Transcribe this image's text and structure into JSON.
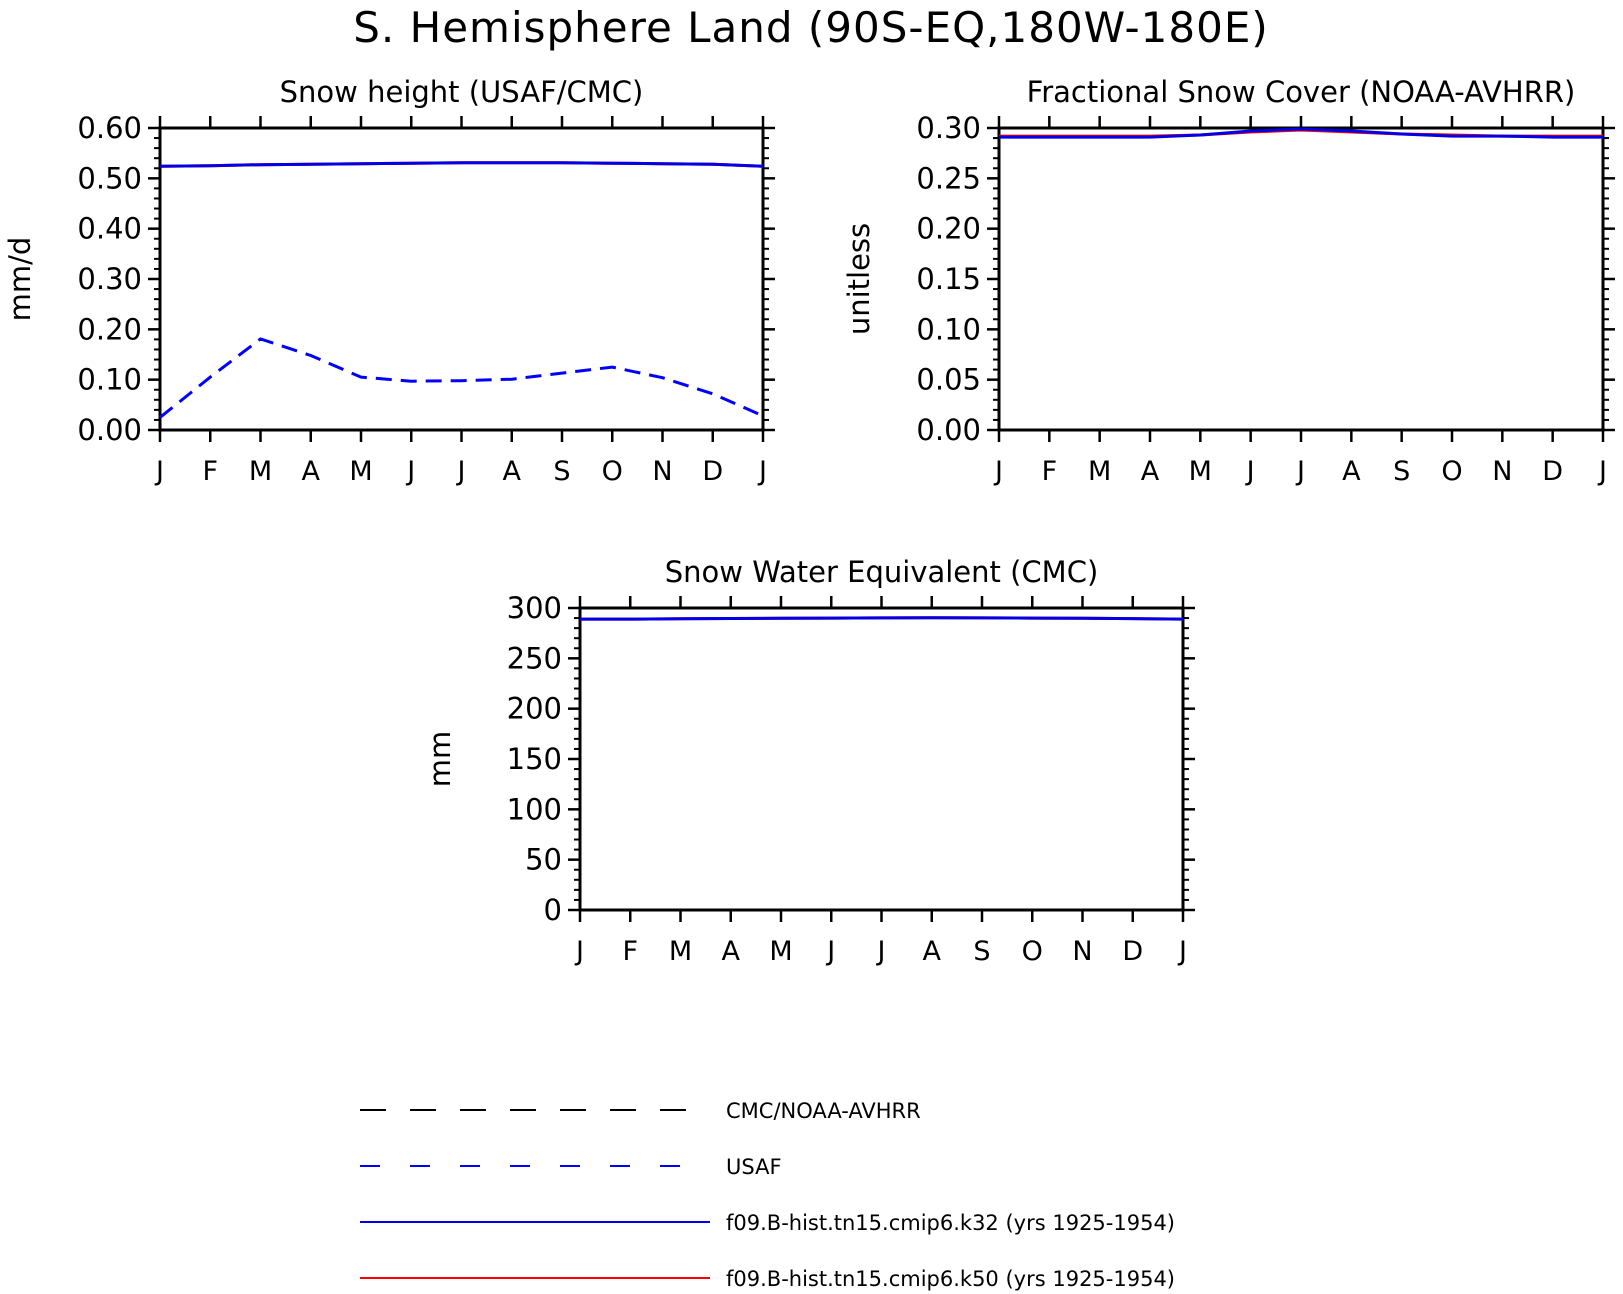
{
  "figure": {
    "title": "S. Hemisphere Land (90S-EQ,180W-180E)"
  },
  "colors": {
    "obs_black": "#000000",
    "usaf_blue": "#0000ff",
    "k32_blue": "#0000e6",
    "k50_red": "#ff0000"
  },
  "months": [
    "J",
    "F",
    "M",
    "A",
    "M",
    "J",
    "J",
    "A",
    "S",
    "O",
    "N",
    "D",
    "J"
  ],
  "legend": [
    {
      "label": "CMC/NOAA-AVHRR",
      "color": "#000000",
      "style": "dashed-long"
    },
    {
      "label": "USAF",
      "color": "#0000ff",
      "style": "dashed"
    },
    {
      "label": "f09.B-hist.tn15.cmip6.k32 (yrs 1925-1954)",
      "color": "#0000e6",
      "style": "solid"
    },
    {
      "label": "f09.B-hist.tn15.cmip6.k50 (yrs 1925-1954)",
      "color": "#ff0000",
      "style": "solid"
    }
  ],
  "chart_data": [
    {
      "type": "line",
      "title": "Snow height (USAF/CMC)",
      "xlabel": "",
      "ylabel": "mm/d",
      "x": [
        "J",
        "F",
        "M",
        "A",
        "M",
        "J",
        "J",
        "A",
        "S",
        "O",
        "N",
        "D",
        "J"
      ],
      "yticks": [
        "0.00",
        "0.10",
        "0.20",
        "0.30",
        "0.40",
        "0.50",
        "0.60"
      ],
      "ylim": [
        0,
        0.6
      ],
      "series": [
        {
          "name": "f09.B-hist.tn15.cmip6.k50 (yrs 1925-1954)",
          "color": "#ff0000",
          "style": "solid",
          "values": [
            0.524,
            0.525,
            0.527,
            0.528,
            0.529,
            0.53,
            0.531,
            0.531,
            0.531,
            0.53,
            0.529,
            0.528,
            0.524
          ]
        },
        {
          "name": "f09.B-hist.tn15.cmip6.k32 (yrs 1925-1954)",
          "color": "#0000e6",
          "style": "solid",
          "values": [
            0.524,
            0.525,
            0.527,
            0.528,
            0.529,
            0.53,
            0.531,
            0.531,
            0.531,
            0.53,
            0.529,
            0.528,
            0.524
          ]
        },
        {
          "name": "USAF",
          "color": "#0000ff",
          "style": "dashed",
          "values": [
            0.025,
            0.105,
            0.181,
            0.148,
            0.105,
            0.097,
            0.098,
            0.101,
            0.113,
            0.125,
            0.104,
            0.072,
            0.028
          ]
        }
      ]
    },
    {
      "type": "line",
      "title": "Fractional Snow Cover (NOAA-AVHRR)",
      "xlabel": "",
      "ylabel": "unitless",
      "x": [
        "J",
        "F",
        "M",
        "A",
        "M",
        "J",
        "J",
        "A",
        "S",
        "O",
        "N",
        "D",
        "J"
      ],
      "yticks": [
        "0.00",
        "0.05",
        "0.10",
        "0.15",
        "0.20",
        "0.25",
        "0.30"
      ],
      "ylim": [
        0,
        0.3
      ],
      "series": [
        {
          "name": "f09.B-hist.tn15.cmip6.k50 (yrs 1925-1954)",
          "color": "#ff0000",
          "style": "solid",
          "values": [
            0.292,
            0.292,
            0.292,
            0.292,
            0.293,
            0.296,
            0.298,
            0.296,
            0.294,
            0.293,
            0.292,
            0.292,
            0.292
          ]
        },
        {
          "name": "f09.B-hist.tn15.cmip6.k32 (yrs 1925-1954)",
          "color": "#0000e6",
          "style": "solid",
          "values": [
            0.291,
            0.291,
            0.291,
            0.291,
            0.293,
            0.297,
            0.299,
            0.297,
            0.294,
            0.292,
            0.292,
            0.291,
            0.291
          ]
        }
      ]
    },
    {
      "type": "line",
      "title": "Snow Water Equivalent (CMC)",
      "xlabel": "",
      "ylabel": "mm",
      "x": [
        "J",
        "F",
        "M",
        "A",
        "M",
        "J",
        "J",
        "A",
        "S",
        "O",
        "N",
        "D",
        "J"
      ],
      "yticks": [
        "0",
        "50",
        "100",
        "150",
        "200",
        "250",
        "300"
      ],
      "ylim": [
        0,
        300
      ],
      "series": [
        {
          "name": "f09.B-hist.tn15.cmip6.k50 (yrs 1925-1954)",
          "color": "#ff0000",
          "style": "solid",
          "values": [
            289,
            289,
            289.3,
            289.6,
            289.8,
            290,
            290.2,
            290.3,
            290.2,
            290,
            289.8,
            289.5,
            289
          ]
        },
        {
          "name": "f09.B-hist.tn15.cmip6.k32 (yrs 1925-1954)",
          "color": "#0000e6",
          "style": "solid",
          "values": [
            289,
            289,
            289.3,
            289.6,
            289.8,
            290,
            290.2,
            290.3,
            290.2,
            290,
            289.8,
            289.5,
            289
          ]
        }
      ]
    }
  ]
}
